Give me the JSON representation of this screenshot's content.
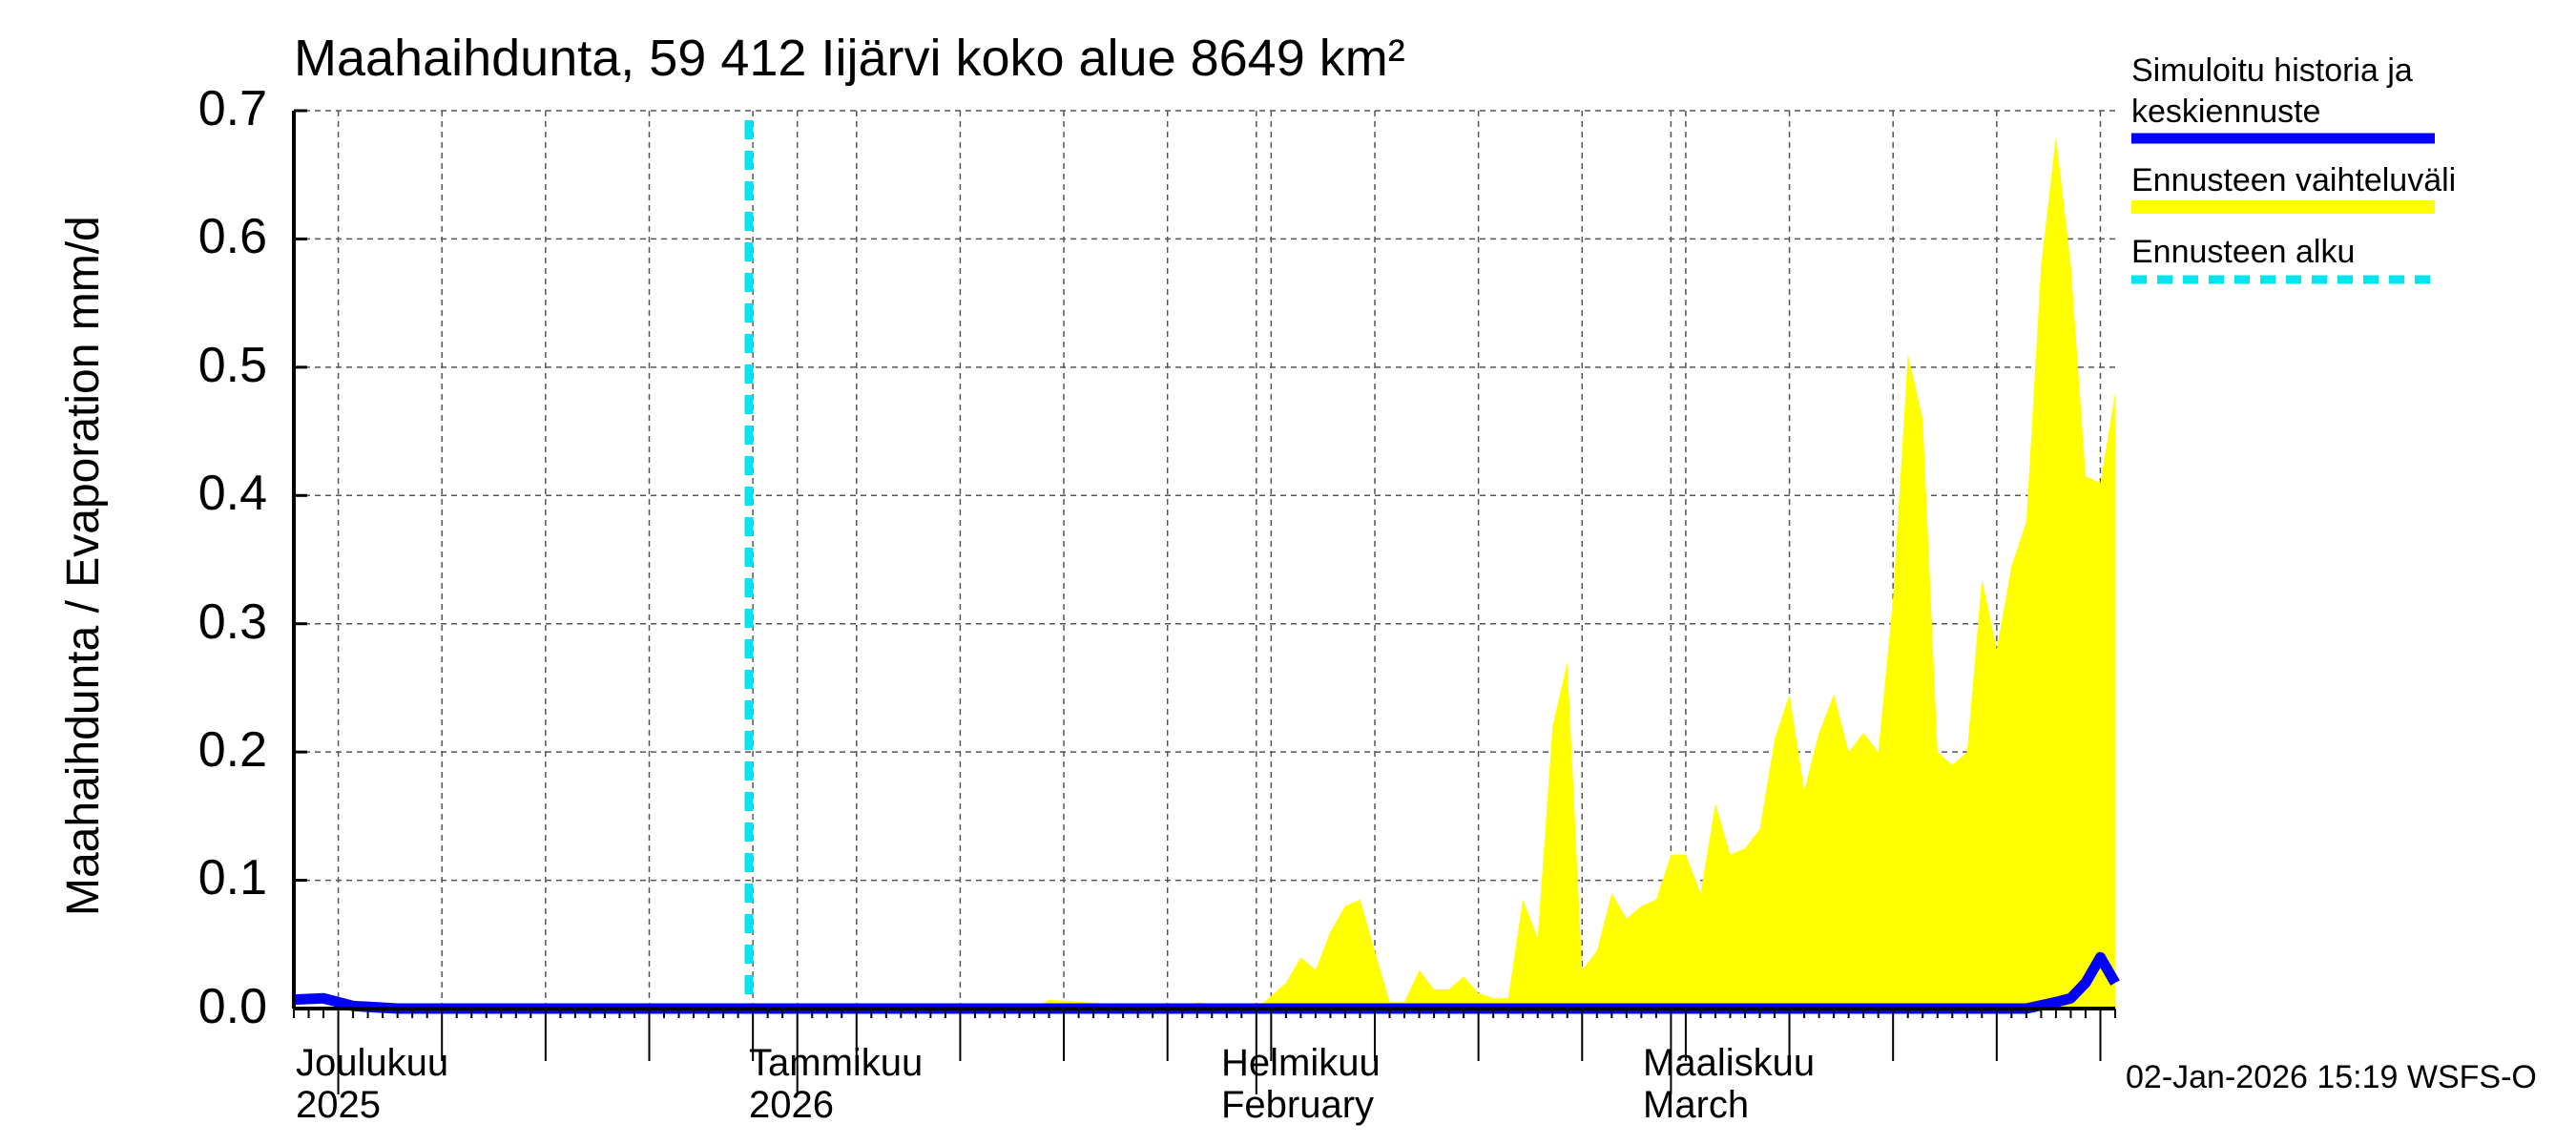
{
  "title": "Maahaihdunta, 59 412 Iijärvi koko alue 8649 km²",
  "y_axis": {
    "label": "Maahaihdunta / Evaporation   mm/d",
    "ticks": [
      "0.0",
      "0.1",
      "0.2",
      "0.3",
      "0.4",
      "0.5",
      "0.6",
      "0.7"
    ]
  },
  "x_axis": {
    "months": [
      {
        "line1": "Joulukuu",
        "line2": "2025"
      },
      {
        "line1": "Tammikuu",
        "line2": "2026"
      },
      {
        "line1": "Helmikuu",
        "line2": "February"
      },
      {
        "line1": "Maaliskuu",
        "line2": "March"
      }
    ]
  },
  "legend": {
    "items": [
      {
        "label_line1": "Simuloitu historia ja",
        "label_line2": "keskiennuste",
        "color": "#0000ff"
      },
      {
        "label_line1": "Ennusteen vaihteluväli",
        "color": "#ffff00"
      },
      {
        "label_line1": "Ennusteen alku",
        "color": "#00e5ee"
      }
    ]
  },
  "footer": "02-Jan-2026 15:19 WSFS-O",
  "chart_data": {
    "type": "area",
    "title": "Maahaihdunta, 59 412 Iijärvi koko alue 8649 km²",
    "xlabel": "",
    "ylabel": "Maahaihdunta / Evaporation mm/d",
    "ylim": [
      0,
      0.7
    ],
    "x_range": [
      "2025-11-28",
      "2026-03-31"
    ],
    "forecast_start": "2026-01-02",
    "series": [
      {
        "name": "Simuloitu historia ja keskiennuste",
        "type": "line",
        "color": "#0000ff",
        "x": [
          "2025-11-28",
          "2025-11-30",
          "2025-12-02",
          "2025-12-05",
          "2026-03-25",
          "2026-03-27",
          "2026-03-28",
          "2026-03-29",
          "2026-03-30",
          "2026-03-31"
        ],
        "values": [
          0.007,
          0.008,
          0.002,
          0.0,
          0.0,
          0.005,
          0.008,
          0.02,
          0.04,
          0.02
        ]
      },
      {
        "name": "Ennusteen vaihteluväli (upper)",
        "type": "area",
        "color": "#ffff00",
        "x": [
          "2026-01-17",
          "2026-01-18",
          "2026-01-27",
          "2026-01-28",
          "2026-02-01",
          "2026-02-03",
          "2026-02-04",
          "2026-02-05",
          "2026-02-06",
          "2026-02-07",
          "2026-02-08",
          "2026-02-10",
          "2026-02-11",
          "2026-02-12",
          "2026-02-13",
          "2026-02-14",
          "2026-02-15",
          "2026-02-16",
          "2026-02-17",
          "2026-02-18",
          "2026-02-19",
          "2026-02-20",
          "2026-02-21",
          "2026-02-22",
          "2026-02-23",
          "2026-02-24",
          "2026-02-25",
          "2026-02-26",
          "2026-02-27",
          "2026-02-28",
          "2026-03-01",
          "2026-03-02",
          "2026-03-03",
          "2026-03-04",
          "2026-03-05",
          "2026-03-06",
          "2026-03-07",
          "2026-03-08",
          "2026-03-09",
          "2026-03-10",
          "2026-03-11",
          "2026-03-12",
          "2026-03-13",
          "2026-03-14",
          "2026-03-15",
          "2026-03-16",
          "2026-03-17",
          "2026-03-18",
          "2026-03-19",
          "2026-03-20",
          "2026-03-21",
          "2026-03-22",
          "2026-03-23",
          "2026-03-24",
          "2026-03-25",
          "2026-03-26",
          "2026-03-27",
          "2026-03-28",
          "2026-03-29",
          "2026-03-30",
          "2026-03-31"
        ],
        "values": [
          0.0,
          0.007,
          0.0,
          0.005,
          0.0,
          0.02,
          0.04,
          0.03,
          0.06,
          0.08,
          0.085,
          0.005,
          0.005,
          0.03,
          0.015,
          0.015,
          0.025,
          0.012,
          0.008,
          0.008,
          0.085,
          0.055,
          0.22,
          0.27,
          0.03,
          0.045,
          0.09,
          0.07,
          0.08,
          0.085,
          0.12,
          0.12,
          0.09,
          0.16,
          0.12,
          0.125,
          0.14,
          0.21,
          0.245,
          0.17,
          0.215,
          0.245,
          0.2,
          0.215,
          0.2,
          0.32,
          0.51,
          0.46,
          0.2,
          0.19,
          0.2,
          0.335,
          0.28,
          0.345,
          0.38,
          0.58,
          0.68,
          0.58,
          0.415,
          0.41,
          0.48
        ]
      }
    ],
    "grid": true,
    "legend_position": "right"
  }
}
